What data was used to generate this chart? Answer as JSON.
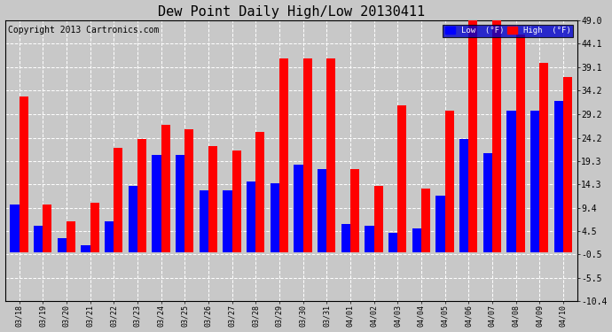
{
  "title": "Dew Point Daily High/Low 20130411",
  "copyright": "Copyright 2013 Cartronics.com",
  "dates": [
    "03/18",
    "03/19",
    "03/20",
    "03/21",
    "03/22",
    "03/23",
    "03/24",
    "03/25",
    "03/26",
    "03/27",
    "03/28",
    "03/29",
    "03/30",
    "03/31",
    "04/01",
    "04/02",
    "04/03",
    "04/04",
    "04/05",
    "04/06",
    "04/07",
    "04/08",
    "04/09",
    "04/10"
  ],
  "low": [
    10.0,
    5.5,
    3.0,
    1.5,
    6.5,
    14.0,
    20.5,
    20.5,
    13.0,
    13.0,
    15.0,
    14.5,
    18.5,
    17.5,
    6.0,
    5.5,
    4.0,
    5.0,
    12.0,
    24.0,
    21.0,
    30.0,
    30.0,
    32.0
  ],
  "high": [
    33.0,
    10.0,
    6.5,
    10.5,
    22.0,
    24.0,
    27.0,
    26.0,
    22.5,
    21.5,
    25.5,
    41.0,
    41.0,
    41.0,
    17.5,
    14.0,
    31.0,
    13.5,
    30.0,
    49.0,
    49.0,
    46.0,
    40.0,
    37.0
  ],
  "ylim": [
    -10.4,
    49.0
  ],
  "yticks": [
    -10.4,
    -5.5,
    -0.5,
    4.5,
    9.4,
    14.3,
    19.3,
    24.2,
    29.2,
    34.2,
    39.1,
    44.1,
    49.0
  ],
  "bar_width": 0.38,
  "low_color": "#0000ff",
  "high_color": "#ff0000",
  "bg_color": "#c8c8c8",
  "plot_bg_color": "#c8c8c8",
  "grid_color": "#ffffff",
  "legend_bg_color": "#0000cc",
  "legend_low_label": "Low  (°F)",
  "legend_high_label": "High  (°F)",
  "title_fontsize": 11,
  "copyright_fontsize": 7
}
